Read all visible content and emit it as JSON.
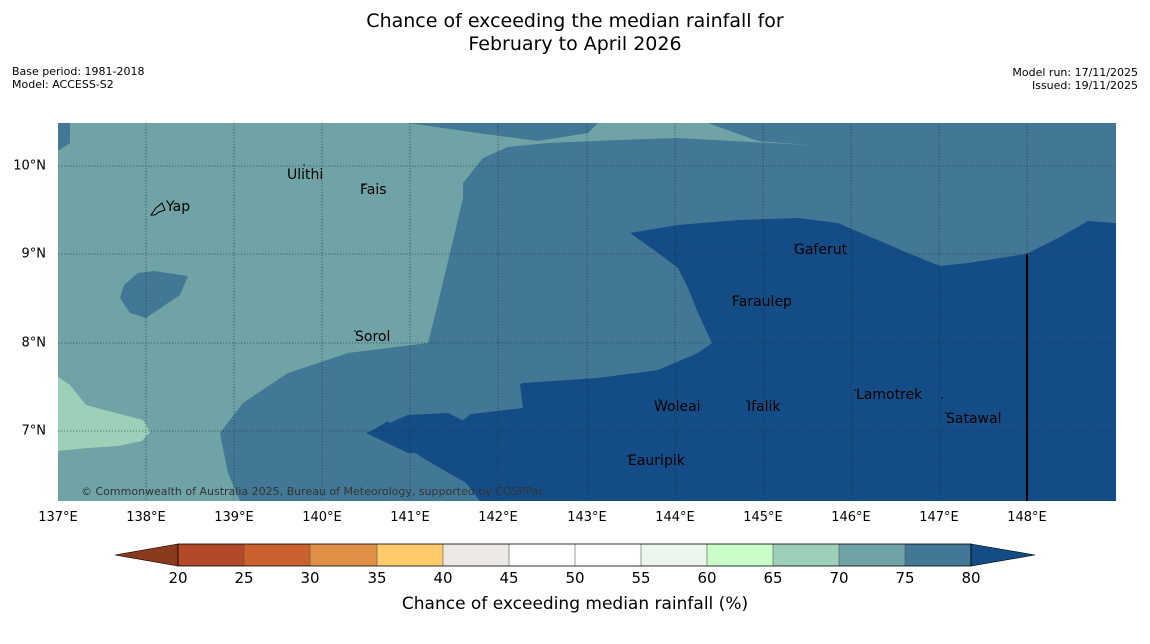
{
  "title": {
    "line1": "Chance of exceeding the median rainfall for",
    "line2": "February to April 2026"
  },
  "meta_left": {
    "base_period": "Base period: 1981-2018",
    "model": "Model: ACCESS-S2"
  },
  "meta_right": {
    "model_run": "Model run: 17/11/2025",
    "issued": "Issued: 19/11/2025"
  },
  "map": {
    "x_ticks": [
      "137°E",
      "138°E",
      "139°E",
      "140°E",
      "141°E",
      "142°E",
      "143°E",
      "144°E",
      "145°E",
      "146°E",
      "147°E",
      "148°E"
    ],
    "y_ticks": [
      "10°N",
      "9°N",
      "8°N",
      "7°N"
    ],
    "places": [
      "Yap",
      "Ulithi",
      "Fais",
      "Sorol",
      "Gaferut",
      "Faraulep",
      "Woleai",
      "Ifalik",
      "Lamotrek",
      "Satawal",
      "Eauripik"
    ],
    "copyright": "© Commonwealth of Australia 2025, Bureau of Meteorology, supported by COSPPac",
    "colors": {
      "c65_70": "#9ecfb8",
      "c70_75": "#6fa3a5",
      "c75_80": "#427895",
      "c80_plus": "#144d86"
    }
  },
  "colorbar": {
    "label": "Chance of exceeding median rainfall (%)",
    "ticks": [
      "20",
      "25",
      "30",
      "35",
      "40",
      "45",
      "50",
      "55",
      "60",
      "65",
      "70",
      "75",
      "80"
    ],
    "colors": [
      "#8b3a1e",
      "#b4492a",
      "#cc6130",
      "#e09147",
      "#fdcb69",
      "#ede9e4",
      "#ffffff",
      "#ffffff",
      "#ebf5eb",
      "#c9fdca",
      "#9ecfb8",
      "#6fa3a5",
      "#427895",
      "#144d86"
    ]
  }
}
